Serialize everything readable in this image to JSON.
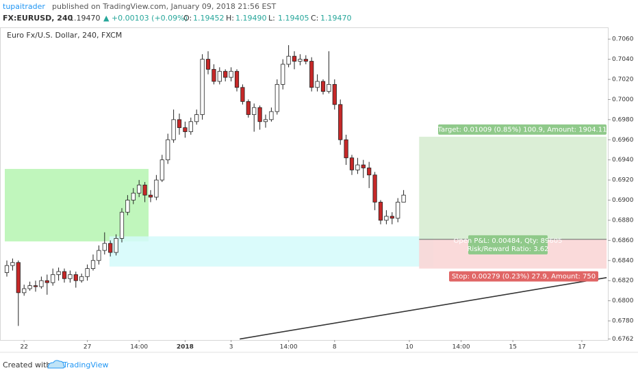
{
  "header": {
    "publisher": "tupaitrader",
    "published": "published on TradingView.com, January 09, 2018 21:56 EST",
    "symbol": "FX:EURUSD, 240",
    "last": "1.19470",
    "change": "▲ +0.00103 (+0.09%)",
    "ohlc": [
      {
        "label": "O:",
        "value": "1.19452"
      },
      {
        "label": "H:",
        "value": "1.19490"
      },
      {
        "label": "L:",
        "value": "1.19405"
      },
      {
        "label": "C:",
        "value": "1.19470"
      }
    ]
  },
  "chart_data": {
    "type": "candlestick",
    "title": "Euro Fx/U.S. Dollar, 240, FXCM",
    "up_color": "#ffffff",
    "down_color": "#c62828",
    "wick_color": "#222222",
    "categories": [
      null,
      null,
      null,
      "22",
      null,
      null,
      null,
      null,
      null,
      null,
      null,
      null,
      null,
      null,
      "27",
      null,
      null,
      null,
      null,
      null,
      null,
      null,
      null,
      "14:00",
      null,
      null,
      null,
      null,
      null,
      null,
      null,
      "2018",
      null,
      null,
      null,
      null,
      null,
      null,
      null,
      "3",
      null,
      null,
      null,
      null,
      null,
      null,
      null,
      null,
      null,
      "14:00",
      null,
      null,
      null,
      null,
      null,
      null,
      null,
      "8",
      null,
      null,
      null,
      null,
      null,
      null,
      null,
      null,
      null,
      null,
      null,
      null,
      "10",
      null,
      null,
      null,
      null,
      null,
      null,
      null,
      null,
      "14:00",
      null,
      null,
      null,
      null,
      null,
      null,
      null,
      null,
      "15",
      null,
      null,
      null,
      null,
      null,
      null,
      null,
      null,
      null,
      null,
      null,
      "17",
      null,
      null,
      null,
      null
    ],
    "open": [
      0.6828,
      0.6835,
      0.6838,
      0.6808,
      0.6812,
      0.6815,
      0.6814,
      0.682,
      0.6818,
      0.6826,
      0.6829,
      0.6822,
      0.6826,
      0.682,
      0.6824,
      0.6832,
      0.684,
      0.685,
      0.6857,
      0.6848,
      0.6862,
      0.6888,
      0.69,
      0.6907,
      0.6915,
      0.6905,
      0.6903,
      0.692,
      0.694,
      0.696,
      0.698,
      0.6972,
      0.6968,
      0.6978,
      0.6985,
      0.704,
      0.703,
      0.7018,
      0.7028,
      0.7022,
      0.7028,
      0.7012,
      0.6998,
      0.6985,
      0.6992,
      0.6978,
      0.698,
      0.6988,
      0.7015,
      0.7035,
      0.7043,
      0.7038,
      0.704,
      0.7038,
      0.7012,
      0.7018,
      0.7008,
      0.7015,
      0.6995,
      0.696,
      0.6942,
      0.693,
      0.6935,
      0.6932,
      0.6925,
      0.6898,
      0.688,
      0.6884,
      0.6882,
      0.6898,
      null,
      null,
      null,
      null,
      null,
      null,
      null,
      null,
      null,
      null,
      null,
      null,
      null,
      null,
      null,
      null,
      null,
      null,
      null,
      null,
      null,
      null,
      null,
      null,
      null,
      null,
      null,
      null,
      null,
      null,
      null,
      null,
      null,
      null,
      null
    ],
    "high": [
      0.684,
      0.6842,
      0.684,
      0.6816,
      0.6819,
      0.682,
      0.6824,
      0.6826,
      0.6832,
      0.6833,
      0.6832,
      0.683,
      0.6829,
      0.6827,
      0.6836,
      0.6846,
      0.6855,
      0.6868,
      0.686,
      0.6866,
      0.6892,
      0.6905,
      0.6912,
      0.692,
      0.6918,
      0.691,
      0.6925,
      0.6945,
      0.6966,
      0.699,
      0.6986,
      0.6978,
      0.6982,
      0.699,
      0.7045,
      0.7048,
      0.7035,
      0.7032,
      0.703,
      0.7032,
      0.703,
      0.7015,
      0.7,
      0.6996,
      0.6994,
      0.6985,
      0.6992,
      0.702,
      0.704,
      0.7054,
      0.7048,
      0.7045,
      0.7044,
      0.7042,
      0.7025,
      0.702,
      0.7048,
      0.702,
      0.7,
      0.6965,
      0.6945,
      0.6942,
      0.694,
      0.6938,
      0.6928,
      0.69,
      0.689,
      0.6888,
      0.6902,
      0.691,
      null,
      null,
      null,
      null,
      null,
      null,
      null,
      null,
      null,
      null,
      null,
      null,
      null,
      null,
      null,
      null,
      null,
      null,
      null,
      null,
      null,
      null,
      null,
      null,
      null,
      null,
      null,
      null,
      null,
      null,
      null,
      null,
      null,
      null,
      null
    ],
    "low": [
      0.6824,
      0.683,
      0.6775,
      0.6805,
      0.681,
      0.6809,
      0.6812,
      0.6806,
      0.6815,
      0.682,
      0.6818,
      0.6818,
      0.6813,
      0.6818,
      0.682,
      0.683,
      0.6836,
      0.6846,
      0.6844,
      0.6845,
      0.6858,
      0.6885,
      0.6896,
      0.6903,
      0.6898,
      0.6898,
      0.69,
      0.6918,
      0.6936,
      0.6957,
      0.6965,
      0.6962,
      0.6965,
      0.6975,
      0.698,
      0.7025,
      0.7015,
      0.7015,
      0.7018,
      0.7018,
      0.7008,
      0.6995,
      0.6982,
      0.6968,
      0.697,
      0.6972,
      0.6978,
      0.6985,
      0.701,
      0.7032,
      0.703,
      0.7034,
      0.7035,
      0.7008,
      0.7008,
      0.7005,
      0.7006,
      0.699,
      0.6955,
      0.6935,
      0.6925,
      0.6926,
      0.6922,
      0.6912,
      0.689,
      0.6876,
      0.6876,
      0.6876,
      0.6878,
      0.6898,
      null,
      null,
      null,
      null,
      null,
      null,
      null,
      null,
      null,
      null,
      null,
      null,
      null,
      null,
      null,
      null,
      null,
      null,
      null,
      null,
      null,
      null,
      null,
      null,
      null,
      null,
      null,
      null,
      null,
      null,
      null,
      null,
      null,
      null,
      null
    ],
    "close": [
      0.6835,
      0.6838,
      0.6808,
      0.6812,
      0.6815,
      0.6814,
      0.682,
      0.6818,
      0.6826,
      0.6829,
      0.6822,
      0.6826,
      0.682,
      0.6824,
      0.6832,
      0.684,
      0.685,
      0.6857,
      0.6848,
      0.6862,
      0.6888,
      0.69,
      0.6907,
      0.6915,
      0.6905,
      0.6903,
      0.692,
      0.694,
      0.696,
      0.698,
      0.6972,
      0.6968,
      0.6978,
      0.6985,
      0.704,
      0.703,
      0.7018,
      0.7028,
      0.7022,
      0.7028,
      0.7012,
      0.6998,
      0.6985,
      0.6992,
      0.6978,
      0.698,
      0.6988,
      0.7015,
      0.7035,
      0.7043,
      0.7038,
      0.704,
      0.7038,
      0.7012,
      0.7018,
      0.7008,
      0.7015,
      0.6995,
      0.696,
      0.6942,
      0.693,
      0.6935,
      0.6932,
      0.6925,
      0.6898,
      0.688,
      0.6884,
      0.6882,
      0.6898,
      0.6905,
      null,
      null,
      null,
      null,
      null,
      null,
      null,
      null,
      null,
      null,
      null,
      null,
      null,
      null,
      null,
      null,
      null,
      null,
      null,
      null,
      null,
      null,
      null,
      null,
      null,
      null,
      null,
      null,
      null,
      null,
      null,
      null,
      null,
      null,
      null
    ],
    "ylim": [
      0.6761,
      0.7071
    ],
    "yticks": [
      {
        "value": 0.6762,
        "label": "0.6762"
      },
      {
        "value": 0.678,
        "label": "0.6780"
      },
      {
        "value": 0.68,
        "label": "0.6800"
      },
      {
        "value": 0.682,
        "label": "0.6820"
      },
      {
        "value": 0.684,
        "label": "0.6840"
      },
      {
        "value": 0.686,
        "label": "0.6860"
      },
      {
        "value": 0.688,
        "label": "0.6880"
      },
      {
        "value": 0.69,
        "label": "0.6900"
      },
      {
        "value": 0.692,
        "label": "0.6920"
      },
      {
        "value": 0.694,
        "label": "0.6940"
      },
      {
        "value": 0.696,
        "label": "0.6960"
      },
      {
        "value": 0.698,
        "label": "0.6980"
      },
      {
        "value": 0.7,
        "label": "0.7000"
      },
      {
        "value": 0.702,
        "label": "0.7020"
      },
      {
        "value": 0.704,
        "label": "0.7040"
      },
      {
        "value": 0.706,
        "label": "0.7060"
      }
    ],
    "zones": [
      {
        "from": 0,
        "to": 25,
        "top": 0.6931,
        "bottom": 0.6859,
        "color": "#b5f5b0"
      },
      {
        "from": 18.2,
        "to": 74.5,
        "top": 0.6864,
        "bottom": 0.6834,
        "color": "#d4fafa"
      }
    ],
    "trendline": {
      "from": [
        40.5,
        0.6762
      ],
      "to": [
        104.3,
        0.6823
      ],
      "color": "#333333"
    },
    "position": {
      "from": 71.7,
      "to": 104.3,
      "entry": 0.6861,
      "target": 0.6963,
      "stop": 0.6832,
      "target_label": "Target: 0.01009 (0.85%) 100.9, Amount: 1904.11",
      "pnl_label": "Open P&L: 0.00484, Qty: 89605",
      "ratio_label": "Risk/Reward Ratio: 3.62",
      "stop_label": "Stop: 0.00279 (0.23%) 27.9, Amount: 750"
    }
  },
  "footer": {
    "created": "Created with",
    "brand": "TradingView"
  }
}
